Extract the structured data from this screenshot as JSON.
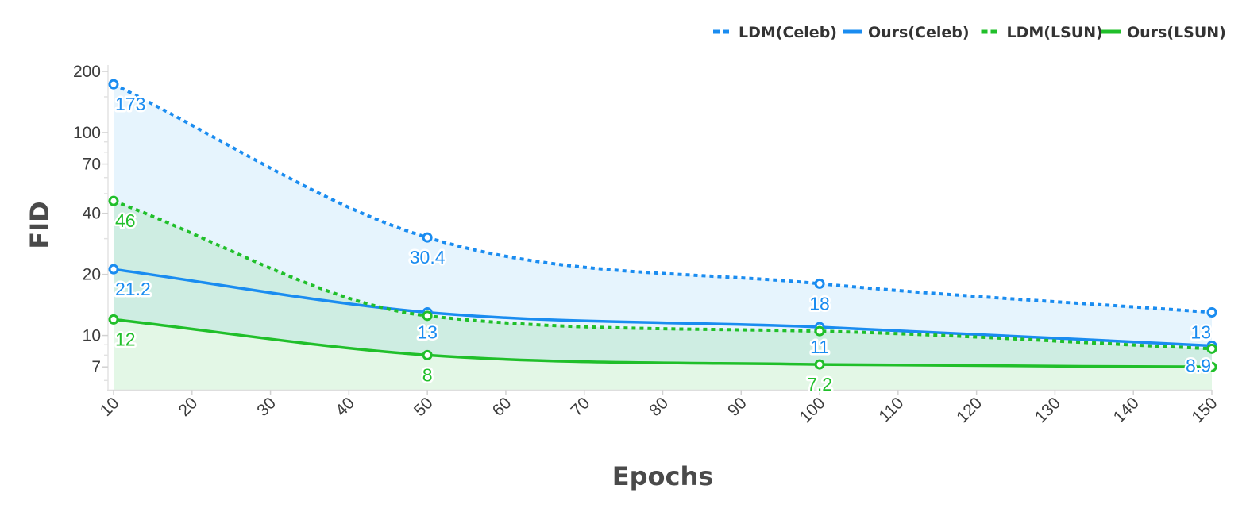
{
  "chart_data": {
    "type": "line",
    "xlabel": "Epochs",
    "ylabel": "FID",
    "x_ticks": [
      10,
      20,
      30,
      40,
      50,
      60,
      70,
      80,
      90,
      100,
      110,
      120,
      130,
      140,
      150
    ],
    "y_ticks": [
      7,
      10,
      20,
      40,
      70,
      100,
      200
    ],
    "y_scale": "log",
    "xlim": [
      10,
      150
    ],
    "ylim": [
      5.4,
      215
    ],
    "grid": false,
    "legend_position": "top-right",
    "x": [
      10,
      50,
      100,
      150
    ],
    "series": [
      {
        "name": "LDM(Celeb)",
        "values": [
          173,
          30.4,
          18,
          13
        ],
        "labels": [
          "173",
          "30.4",
          "18",
          "13"
        ],
        "color": "#1a8cf0",
        "style": "dashed",
        "fill": "#e5f3fd"
      },
      {
        "name": "Ours(Celeb)",
        "values": [
          21.2,
          13,
          11,
          8.9
        ],
        "labels": [
          "21.2",
          "13",
          "11",
          "8.9"
        ],
        "color": "#1a8cf0",
        "style": "solid",
        "fill": null
      },
      {
        "name": "LDM(LSUN)",
        "values": [
          46,
          12.5,
          10.5,
          8.6
        ],
        "labels": [
          "46",
          "",
          "",
          ""
        ],
        "color": "#20bf2a",
        "style": "dashed",
        "fill": "#ccece0"
      },
      {
        "name": "Ours(LSUN)",
        "values": [
          12,
          8,
          7.2,
          7
        ],
        "labels": [
          "12",
          "8",
          "7.2",
          ""
        ],
        "color": "#20bf2a",
        "style": "solid",
        "fill": "#e4f8e6"
      }
    ]
  }
}
